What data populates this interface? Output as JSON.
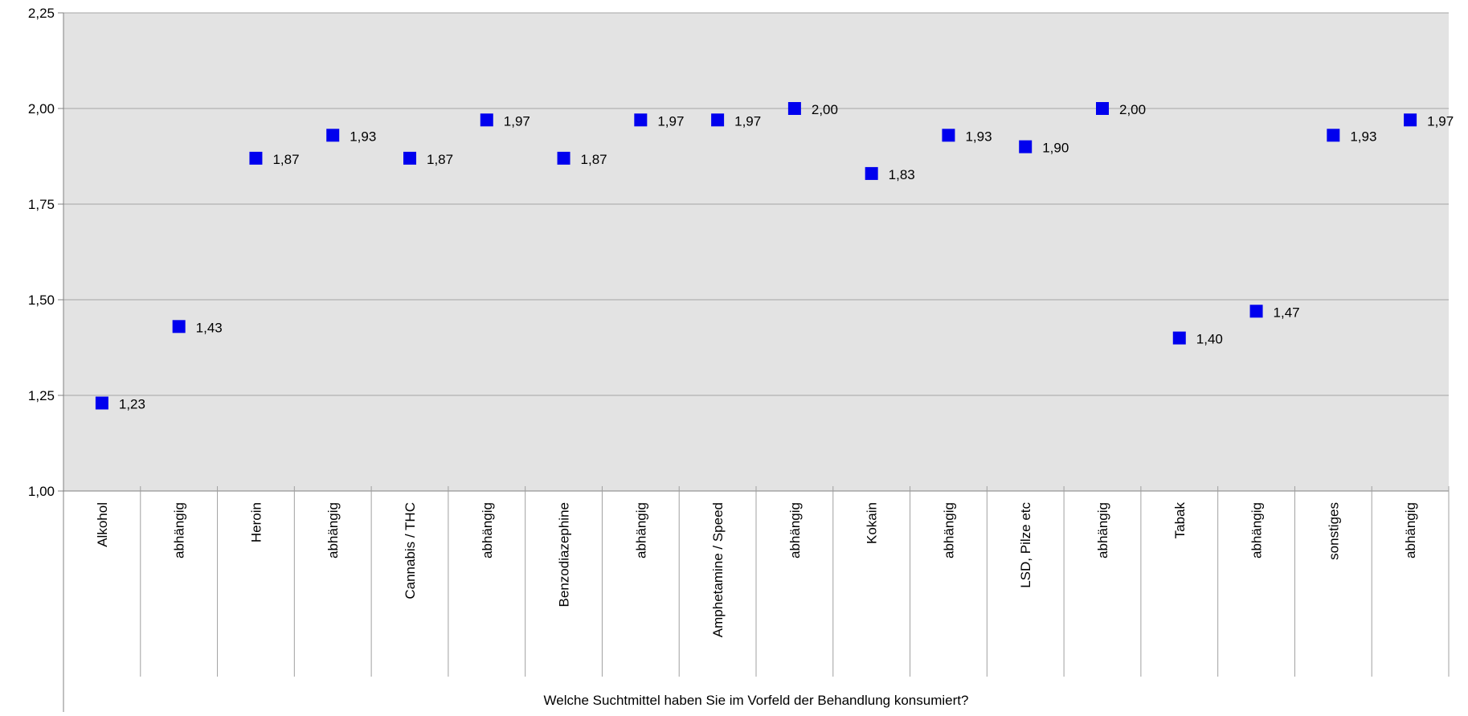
{
  "chart_data": {
    "type": "scatter",
    "xlabel": "Welche Suchtmittel haben Sie im Vorfeld der Behandlung konsumiert?",
    "ylabel": "",
    "ylim": [
      1.0,
      2.25
    ],
    "yticks": [
      "1,00",
      "1,25",
      "1,50",
      "1,75",
      "2,00",
      "2,25"
    ],
    "ytick_values": [
      1.0,
      1.25,
      1.5,
      1.75,
      2.0,
      2.25
    ],
    "grid": true,
    "legend": "none",
    "marker": "square",
    "colors": {
      "marker": "#0000ee",
      "plot_background": "#e3e3e3",
      "gridline": "#a6a6a6"
    },
    "categories": [
      "Alkohol",
      "abhängig",
      "Heroin",
      "abhängig",
      "Cannabis / THC",
      "abhängig",
      "Benzodiazephine",
      "abhängig",
      "Amphetamine / Speed",
      "abhängig",
      "Kokain",
      "abhängig",
      "LSD, Pilze etc",
      "abhängig",
      "Tabak",
      "abhängig",
      "sonstiges",
      "abhängig"
    ],
    "values": [
      1.23,
      1.43,
      1.87,
      1.93,
      1.87,
      1.97,
      1.87,
      1.97,
      1.97,
      2.0,
      1.83,
      1.93,
      1.9,
      2.0,
      1.4,
      1.47,
      1.93,
      1.97
    ],
    "data_labels": [
      "1,23",
      "1,43",
      "1,87",
      "1,93",
      "1,87",
      "1,97",
      "1,87",
      "1,97",
      "1,97",
      "2,00",
      "1,83",
      "1,93",
      "1,90",
      "2,00",
      "1,40",
      "1,47",
      "1,93",
      "1,97"
    ]
  }
}
